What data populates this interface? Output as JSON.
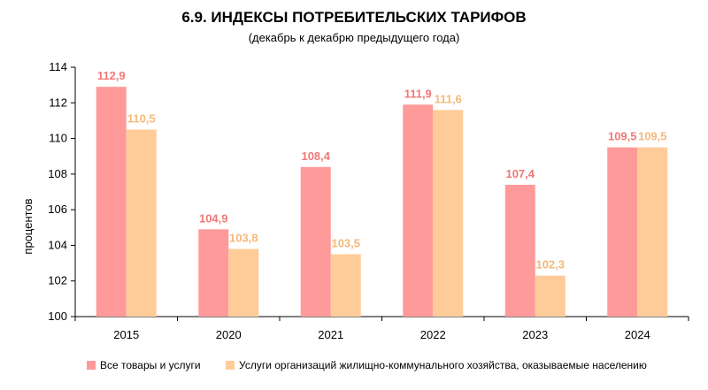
{
  "chart_data": {
    "type": "bar",
    "title": "6.9. ИНДЕКСЫ ПОТРЕБИТЕЛЬСКИХ ТАРИФОВ",
    "subtitle": "(декабрь к декабрю предыдущего года)",
    "xlabel": "",
    "ylabel": "процентов",
    "ylim": [
      100,
      114
    ],
    "yticks": [
      100,
      102,
      104,
      106,
      108,
      110,
      112,
      114
    ],
    "categories": [
      "2015",
      "2020",
      "2021",
      "2022",
      "2023",
      "2024"
    ],
    "series": [
      {
        "name": "Все товары и услуги",
        "color": "#ff9a9a",
        "label_color": "#f07878",
        "values": [
          112.9,
          104.9,
          108.4,
          111.9,
          107.4,
          109.5
        ],
        "labels": [
          "112,9",
          "104,9",
          "108,4",
          "111,9",
          "107,4",
          "109,5"
        ]
      },
      {
        "name": "Услуги организаций жилищно-коммунального хозяйства, оказываемые населению",
        "color": "#ffcc99",
        "label_color": "#f5b878",
        "values": [
          110.5,
          103.8,
          103.5,
          111.6,
          102.3,
          109.5
        ],
        "labels": [
          "110,5",
          "103,8",
          "103,5",
          "111,6",
          "102,3",
          "109,5"
        ]
      }
    ],
    "grid": false,
    "legend_position": "bottom"
  }
}
